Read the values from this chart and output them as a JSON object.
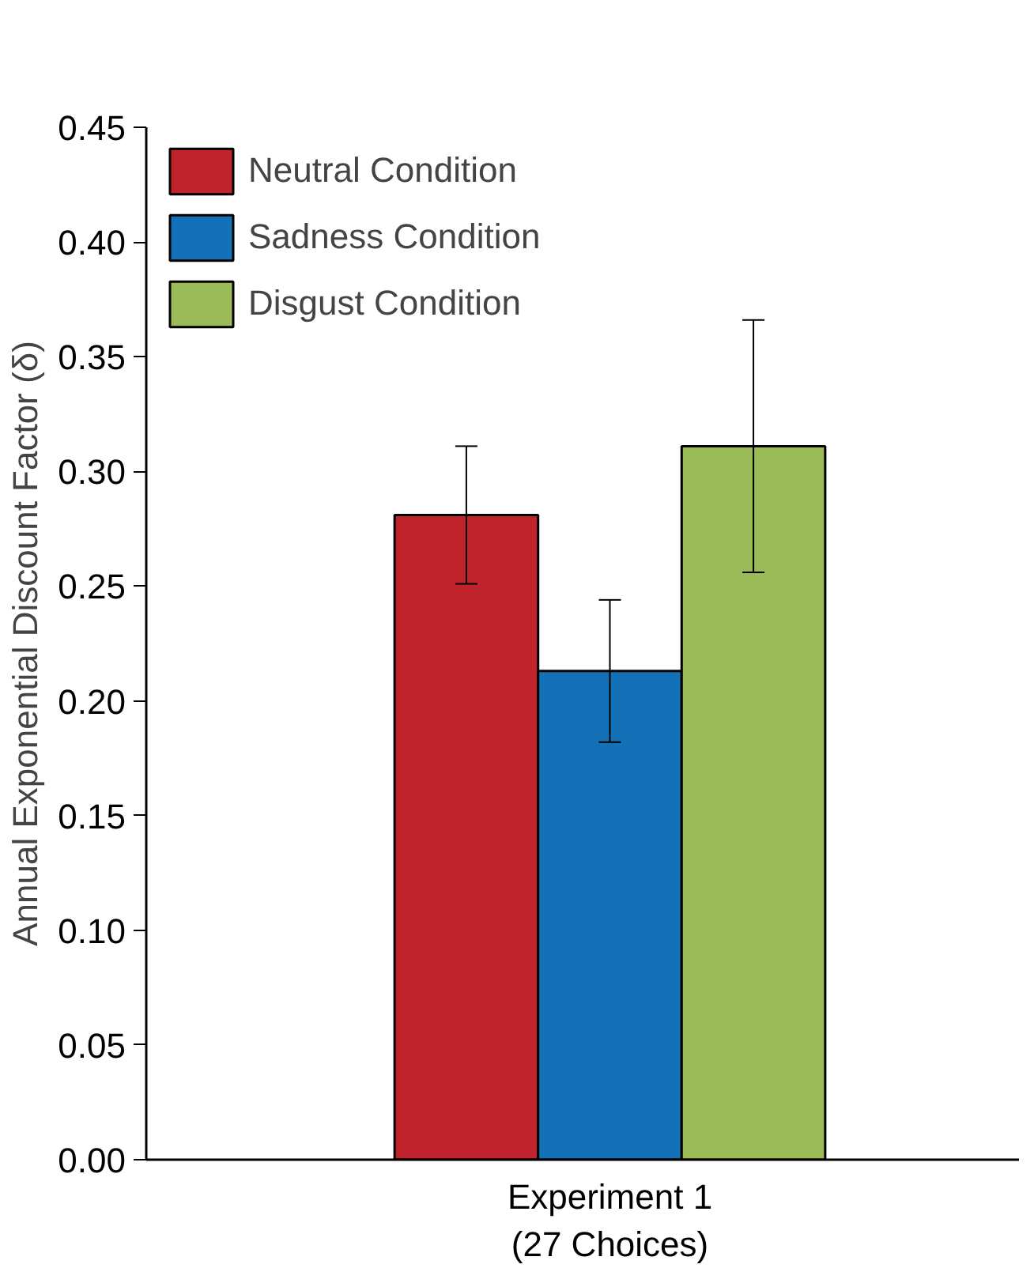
{
  "chart_data": {
    "type": "bar",
    "categories": [
      "Experiment 1\n(27 Choices)"
    ],
    "ylabel": "Annual Exponential Discount Factor (δ)",
    "series": [
      {
        "name": "Neutral Condition",
        "color": "#c0232b",
        "values": [
          0.281
        ],
        "errors": [
          0.03
        ]
      },
      {
        "name": "Sadness Condition",
        "color": "#1471b8",
        "values": [
          0.213
        ],
        "errors": [
          0.031
        ]
      },
      {
        "name": "Disgust Condition",
        "color": "#9bbb59",
        "values": [
          0.311
        ],
        "errors": [
          0.055
        ]
      }
    ],
    "ylim": [
      0,
      0.45
    ],
    "yticks": [
      {
        "value": 0,
        "label": "0.00"
      },
      {
        "value": 0.05,
        "label": "0.05"
      },
      {
        "value": 0.1,
        "label": "0.10"
      },
      {
        "value": 0.15,
        "label": "0.15"
      },
      {
        "value": 0.2,
        "label": "0.20"
      },
      {
        "value": 0.25,
        "label": "0.25"
      },
      {
        "value": 0.3,
        "label": "0.30"
      },
      {
        "value": 0.35,
        "label": "0.35"
      },
      {
        "value": 0.4,
        "label": "0.40"
      },
      {
        "value": 0.45,
        "label": "0.45"
      }
    ],
    "grid": false,
    "legend": "top left"
  }
}
